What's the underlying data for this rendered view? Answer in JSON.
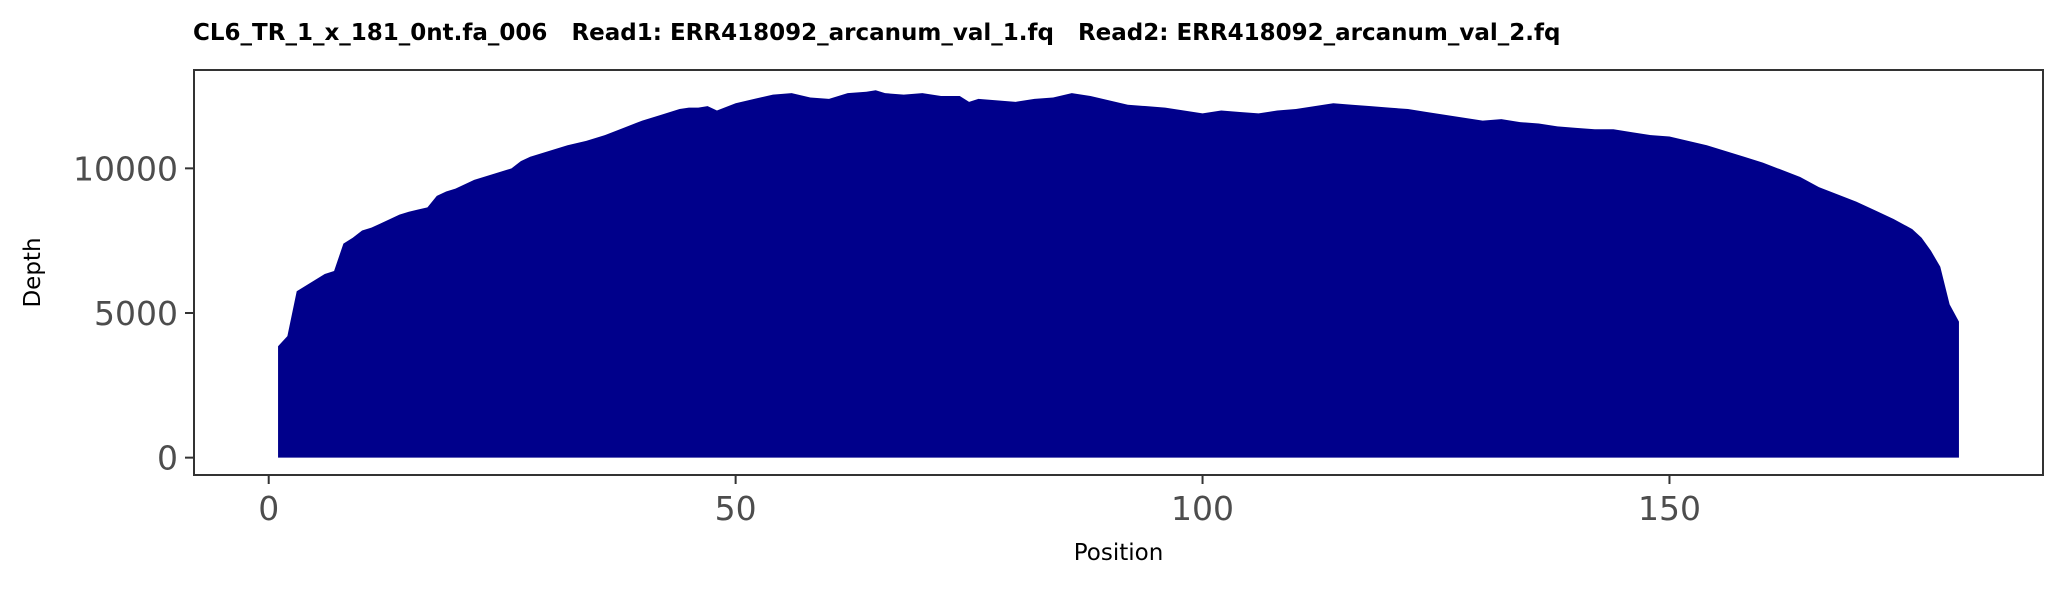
{
  "chart_data": {
    "type": "area",
    "title": "CL6_TR_1_x_181_0nt.fa_006   Read1: ERR418092_arcanum_val_1.fq   Read2: ERR418092_arcanum_val_2.fq",
    "xlabel": "Position",
    "ylabel": "Depth",
    "xlim": [
      -8,
      190
    ],
    "ylim": [
      -600,
      13400
    ],
    "x_ticks": [
      0,
      50,
      100,
      150
    ],
    "y_ticks": [
      0,
      5000,
      10000
    ],
    "grid": false,
    "legend": "none",
    "fill_color": "#00008b",
    "series": [
      {
        "x": [
          1,
          1,
          2,
          3,
          4,
          5,
          6,
          7,
          8,
          9,
          10,
          11,
          12,
          13,
          14,
          15,
          16,
          17,
          18,
          19,
          20,
          22,
          24,
          26,
          27,
          28,
          30,
          32,
          34,
          36,
          38,
          40,
          42,
          44,
          45,
          46,
          47,
          48,
          50,
          52,
          54,
          56,
          58,
          60,
          62,
          64,
          65,
          66,
          68,
          70,
          72,
          74,
          75,
          76,
          78,
          80,
          82,
          84,
          86,
          88,
          90,
          92,
          94,
          96,
          98,
          100,
          102,
          104,
          106,
          108,
          110,
          112,
          114,
          116,
          118,
          120,
          122,
          124,
          126,
          128,
          130,
          132,
          134,
          136,
          138,
          140,
          142,
          144,
          146,
          148,
          150,
          152,
          154,
          156,
          158,
          160,
          162,
          164,
          166,
          168,
          170,
          172,
          174,
          176,
          177,
          178,
          179,
          180,
          181,
          181
        ],
        "y": [
          0,
          3850,
          4200,
          5750,
          5950,
          6150,
          6350,
          6450,
          7400,
          7600,
          7850,
          7950,
          8100,
          8250,
          8400,
          8500,
          8580,
          8650,
          9050,
          9200,
          9300,
          9600,
          9800,
          10000,
          10250,
          10400,
          10600,
          10800,
          10950,
          11150,
          11400,
          11650,
          11850,
          12050,
          12100,
          12100,
          12150,
          12000,
          12250,
          12400,
          12550,
          12600,
          12450,
          12400,
          12600,
          12650,
          12700,
          12600,
          12550,
          12600,
          12500,
          12500,
          12300,
          12400,
          12350,
          12300,
          12400,
          12450,
          12600,
          12500,
          12350,
          12200,
          12150,
          12100,
          12000,
          11900,
          12000,
          11950,
          11900,
          12000,
          12050,
          12150,
          12250,
          12200,
          12150,
          12100,
          12050,
          11950,
          11850,
          11750,
          11650,
          11700,
          11600,
          11550,
          11450,
          11400,
          11350,
          11350,
          11250,
          11150,
          11100,
          10950,
          10800,
          10600,
          10400,
          10200,
          9950,
          9700,
          9350,
          9100,
          8850,
          8550,
          8250,
          7900,
          7600,
          7150,
          6600,
          5300,
          4700,
          0
        ]
      }
    ]
  }
}
